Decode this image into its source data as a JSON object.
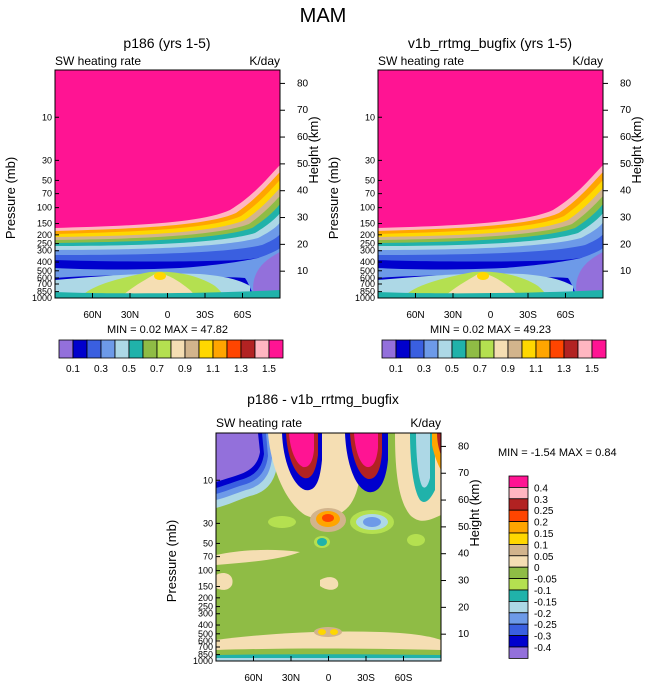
{
  "figure_title": "MAM",
  "chart_data": [
    {
      "type": "contour",
      "title": "p186 (yrs 1-5)",
      "left_label": "SW heating rate",
      "right_label": "K/day",
      "xlabel": "",
      "ylabel": "Pressure (mb)",
      "ylabel_right": "Height (km)",
      "x_ticks": [
        "60N",
        "30N",
        "0",
        "30S",
        "60S"
      ],
      "pressure_ticks": [
        "10",
        "30",
        "50",
        "70",
        "100",
        "150",
        "200",
        "250",
        "300",
        "400",
        "500",
        "600",
        "700",
        "850",
        "1000"
      ],
      "height_ticks": [
        "10",
        "20",
        "30",
        "40",
        "50",
        "60",
        "70",
        "80"
      ],
      "stats": "MIN =  0.02  MAX = 47.82",
      "min": 0.02,
      "max": 47.82,
      "levels": [
        0.1,
        0.2,
        0.3,
        0.4,
        0.5,
        0.6,
        0.7,
        0.8,
        0.9,
        1.0,
        1.1,
        1.2,
        1.3,
        1.4,
        1.5
      ],
      "colorbar_labels": [
        "0.1",
        "0.3",
        "0.5",
        "0.7",
        "0.9",
        "1.1",
        "1.3",
        "1.5"
      ],
      "palette": [
        "#9370db",
        "#0000cd",
        "#3a5fe0",
        "#6d9ae8",
        "#add8e6",
        "#20b2aa",
        "#8fbc45",
        "#b4e050",
        "#f5deb3",
        "#d2b48c",
        "#ffd700",
        "#ffa500",
        "#ff4500",
        "#b22222",
        "#ffb6c1",
        "#ff1493"
      ]
    },
    {
      "type": "contour",
      "title": "v1b_rrtmg_bugfix (yrs 1-5)",
      "left_label": "SW heating rate",
      "right_label": "K/day",
      "xlabel": "",
      "ylabel": "Pressure (mb)",
      "ylabel_right": "Height (km)",
      "x_ticks": [
        "60N",
        "30N",
        "0",
        "30S",
        "60S"
      ],
      "pressure_ticks": [
        "10",
        "30",
        "50",
        "70",
        "100",
        "150",
        "200",
        "250",
        "300",
        "400",
        "500",
        "600",
        "700",
        "850",
        "1000"
      ],
      "height_ticks": [
        "10",
        "20",
        "30",
        "40",
        "50",
        "60",
        "70",
        "80"
      ],
      "stats": "MIN =  0.02  MAX = 49.23",
      "min": 0.02,
      "max": 49.23,
      "levels": [
        0.1,
        0.2,
        0.3,
        0.4,
        0.5,
        0.6,
        0.7,
        0.8,
        0.9,
        1.0,
        1.1,
        1.2,
        1.3,
        1.4,
        1.5
      ],
      "colorbar_labels": [
        "0.1",
        "0.3",
        "0.5",
        "0.7",
        "0.9",
        "1.1",
        "1.3",
        "1.5"
      ],
      "palette": [
        "#9370db",
        "#0000cd",
        "#3a5fe0",
        "#6d9ae8",
        "#add8e6",
        "#20b2aa",
        "#8fbc45",
        "#b4e050",
        "#f5deb3",
        "#d2b48c",
        "#ffd700",
        "#ffa500",
        "#ff4500",
        "#b22222",
        "#ffb6c1",
        "#ff1493"
      ]
    },
    {
      "type": "contour",
      "title": "p186 - v1b_rrtmg_bugfix",
      "left_label": "SW heating rate",
      "right_label": "K/day",
      "xlabel": "",
      "ylabel": "Pressure (mb)",
      "ylabel_right": "Height (km)",
      "x_ticks": [
        "60N",
        "30N",
        "0",
        "30S",
        "60S"
      ],
      "pressure_ticks": [
        "10",
        "30",
        "50",
        "70",
        "100",
        "150",
        "200",
        "250",
        "300",
        "400",
        "500",
        "600",
        "700",
        "850",
        "1000"
      ],
      "height_ticks": [
        "10",
        "20",
        "30",
        "40",
        "50",
        "60",
        "70",
        "80"
      ],
      "stats": "MIN = -1.54  MAX =  0.84",
      "min": -1.54,
      "max": 0.84,
      "levels": [
        -0.4,
        -0.3,
        -0.25,
        -0.2,
        -0.15,
        -0.1,
        -0.05,
        0,
        0.05,
        0.1,
        0.15,
        0.2,
        0.25,
        0.3,
        0.4
      ],
      "colorbar_labels": [
        "0.4",
        "0.3",
        "0.25",
        "0.2",
        "0.15",
        "0.1",
        "0.05",
        "0",
        "-0.05",
        "-0.1",
        "-0.15",
        "-0.2",
        "-0.25",
        "-0.3",
        "-0.4"
      ],
      "palette": [
        "#9370db",
        "#0000cd",
        "#3a5fe0",
        "#6d9ae8",
        "#add8e6",
        "#20b2aa",
        "#b4e050",
        "#8fbc45",
        "#f5deb3",
        "#d2b48c",
        "#ffd700",
        "#ffa500",
        "#ff4500",
        "#b22222",
        "#ffb6c1",
        "#ff1493"
      ]
    }
  ]
}
